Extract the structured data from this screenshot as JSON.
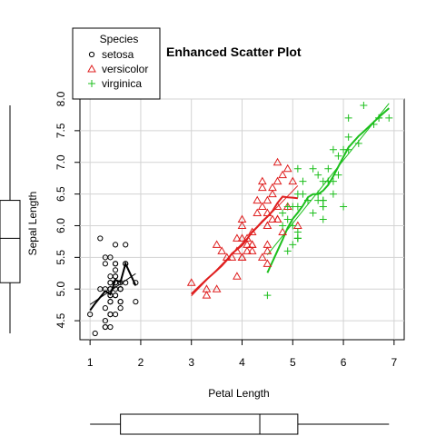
{
  "chart_data": {
    "type": "scatter",
    "title": "Enhanced Scatter Plot",
    "xlabel": "Petal Length",
    "ylabel": "Sepal Length",
    "xlim": [
      0.8,
      7.2
    ],
    "ylim": [
      4.2,
      8.0
    ],
    "x_ticks": [
      "1",
      "2",
      "3",
      "4",
      "5",
      "6",
      "7"
    ],
    "y_ticks": [
      "4.5",
      "5.0",
      "5.5",
      "6.0",
      "6.5",
      "7.0",
      "7.5",
      "8.0"
    ],
    "grid": true,
    "legend": {
      "title": "Species",
      "position": "top-left",
      "entries": [
        "setosa",
        "versicolor",
        "virginica"
      ]
    },
    "colors": {
      "setosa": "#000000",
      "versicolor": "#DF1F1F",
      "virginica": "#1DBF1D"
    },
    "series": [
      {
        "name": "setosa",
        "marker": "circle",
        "x": [
          1.4,
          1.4,
          1.3,
          1.5,
          1.4,
          1.7,
          1.4,
          1.5,
          1.4,
          1.5,
          1.5,
          1.6,
          1.4,
          1.1,
          1.2,
          1.5,
          1.3,
          1.4,
          1.7,
          1.5,
          1.7,
          1.5,
          1.0,
          1.7,
          1.9,
          1.6,
          1.6,
          1.5,
          1.4,
          1.6,
          1.6,
          1.5,
          1.5,
          1.4,
          1.5,
          1.2,
          1.3,
          1.4,
          1.3,
          1.5,
          1.3,
          1.3,
          1.3,
          1.6,
          1.9,
          1.4,
          1.6,
          1.4,
          1.5,
          1.4
        ],
        "y": [
          5.1,
          4.9,
          4.7,
          4.6,
          5.0,
          5.4,
          4.6,
          5.0,
          4.4,
          4.9,
          5.4,
          4.8,
          4.8,
          4.3,
          5.8,
          5.7,
          5.4,
          5.1,
          5.7,
          5.1,
          5.4,
          5.1,
          4.6,
          5.1,
          4.8,
          5.0,
          5.0,
          5.2,
          5.2,
          4.7,
          4.8,
          5.4,
          5.2,
          5.5,
          4.9,
          5.0,
          5.5,
          4.9,
          4.4,
          5.1,
          5.0,
          4.5,
          4.4,
          5.0,
          5.1,
          4.8,
          5.1,
          4.6,
          5.3,
          5.0
        ]
      },
      {
        "name": "versicolor",
        "marker": "triangle",
        "x": [
          4.7,
          4.5,
          4.9,
          4.0,
          4.6,
          4.5,
          4.7,
          3.3,
          4.6,
          3.9,
          3.5,
          4.2,
          4.0,
          4.7,
          3.6,
          4.4,
          4.5,
          4.1,
          4.5,
          3.9,
          4.8,
          4.0,
          4.9,
          4.7,
          4.3,
          4.4,
          4.8,
          5.0,
          4.5,
          3.5,
          3.8,
          3.7,
          3.9,
          5.1,
          4.5,
          4.5,
          4.7,
          4.4,
          4.1,
          4.0,
          4.4,
          4.6,
          4.0,
          3.3,
          4.2,
          4.2,
          4.2,
          4.3,
          3.0,
          4.1
        ],
        "y": [
          7.0,
          6.4,
          6.9,
          5.5,
          6.5,
          5.7,
          6.3,
          4.9,
          6.6,
          5.2,
          5.0,
          5.9,
          6.0,
          6.1,
          5.6,
          6.7,
          5.6,
          5.8,
          6.2,
          5.6,
          5.9,
          6.1,
          6.3,
          6.1,
          6.4,
          6.6,
          6.8,
          6.7,
          6.0,
          5.7,
          5.5,
          5.5,
          5.8,
          6.0,
          5.4,
          6.0,
          6.7,
          6.3,
          5.6,
          5.5,
          5.5,
          6.1,
          5.8,
          5.0,
          5.6,
          5.7,
          5.7,
          6.2,
          5.1,
          5.7
        ]
      },
      {
        "name": "virginica",
        "marker": "plus",
        "x": [
          6.0,
          5.1,
          5.9,
          5.6,
          5.8,
          6.6,
          4.5,
          6.3,
          5.8,
          6.1,
          5.1,
          5.3,
          5.5,
          5.0,
          5.1,
          5.3,
          5.5,
          6.7,
          6.9,
          5.0,
          5.7,
          4.9,
          6.7,
          4.9,
          5.7,
          6.0,
          4.8,
          4.9,
          5.6,
          5.8,
          6.1,
          6.4,
          5.6,
          5.1,
          5.6,
          6.1,
          5.6,
          5.5,
          4.8,
          5.4,
          5.6,
          5.1,
          5.1,
          5.9,
          5.7,
          5.2,
          5.0,
          5.2,
          5.4,
          5.1
        ],
        "y": [
          6.3,
          5.8,
          7.1,
          6.3,
          6.5,
          7.6,
          4.9,
          7.3,
          6.7,
          7.2,
          6.5,
          6.4,
          6.8,
          5.7,
          5.8,
          6.4,
          6.5,
          7.7,
          7.7,
          6.0,
          6.9,
          5.6,
          7.7,
          6.3,
          6.7,
          7.2,
          6.2,
          6.1,
          6.4,
          7.2,
          7.4,
          7.9,
          6.4,
          6.3,
          6.1,
          7.7,
          6.3,
          6.4,
          6.0,
          6.9,
          6.7,
          6.9,
          5.8,
          6.8,
          6.7,
          6.7,
          6.3,
          6.5,
          6.2,
          5.9
        ]
      }
    ]
  }
}
